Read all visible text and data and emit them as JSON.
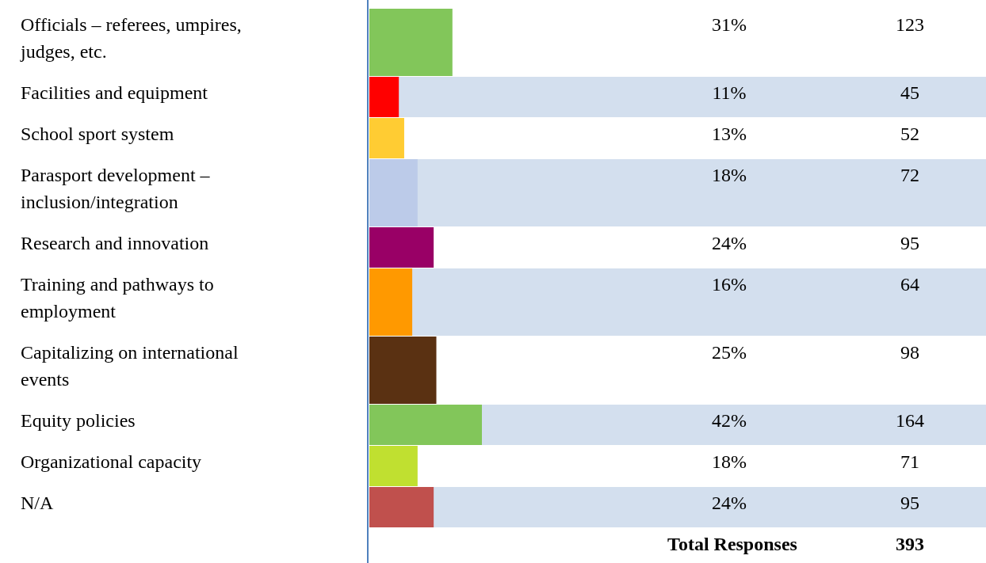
{
  "chart_data": {
    "type": "bar",
    "orientation": "horizontal",
    "categories": [
      "Officials – referees, umpires, judges, etc.",
      "Facilities and equipment",
      "School sport system",
      "Parasport development – inclusion/integration",
      "Research and innovation",
      "Training and pathways to employment",
      "Capitalizing on international events",
      "Equity policies",
      "Organizational capacity",
      "N/A"
    ],
    "values": [
      31,
      11,
      13,
      18,
      24,
      16,
      25,
      42,
      18,
      24
    ],
    "value_labels": [
      "31%",
      "11%",
      "13%",
      "18%",
      "24%",
      "16%",
      "25%",
      "42%",
      "18%",
      "24%"
    ],
    "colors": [
      "#82c65a",
      "#ff0000",
      "#ffcc33",
      "#bccbe9",
      "#990066",
      "#ff9900",
      "#5a3112",
      "#82c65a",
      "#c0e030",
      "#c0504d"
    ],
    "annotations": [
      "123",
      "45",
      "52",
      "72",
      "95",
      "64",
      "98",
      "164",
      "71",
      "95",
      "Total Responses",
      "393"
    ]
  }
}
